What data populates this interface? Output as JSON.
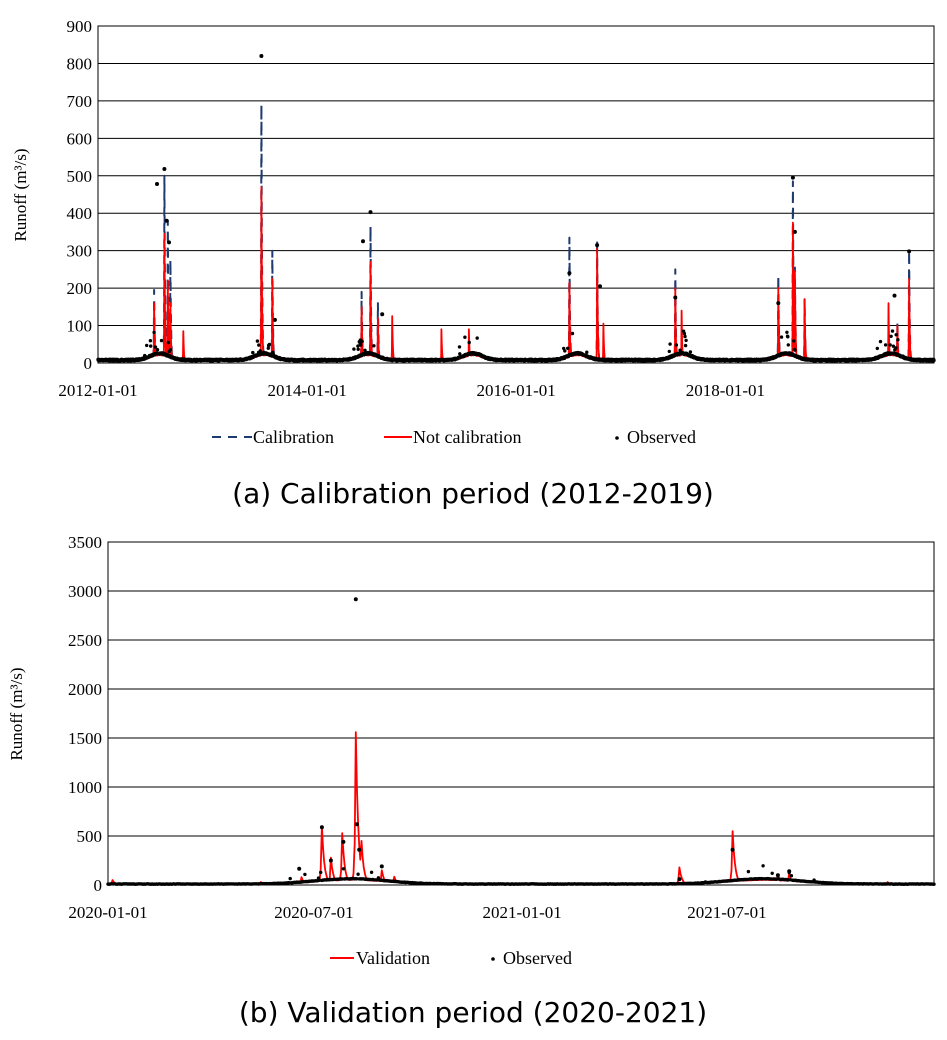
{
  "chart_data": [
    {
      "type": "line",
      "caption": "(a) Calibration period (2012-2019)",
      "ylabel": "Runoff (m³/s)",
      "ylim": [
        0,
        900
      ],
      "yticks": [
        0,
        100,
        200,
        300,
        400,
        500,
        600,
        700,
        800,
        900
      ],
      "xlim": [
        "2012-01-01",
        "2019-12-31"
      ],
      "xticks": [
        "2012-01-01",
        "2014-01-01",
        "2016-01-01",
        "2018-01-01"
      ],
      "grid": "horizontal",
      "legend_position": "bottom",
      "colors": {
        "calibration": "#1f3a6e",
        "not_calibration": "#ff0000",
        "observed": "#000000"
      },
      "series": [
        {
          "name": "Calibration",
          "style": "dashed",
          "peaks": [
            [
              "2012-07-15",
              195
            ],
            [
              "2012-08-20",
              500
            ],
            [
              "2012-09-01",
              380
            ],
            [
              "2012-09-10",
              275
            ],
            [
              "2013-07-25",
              690
            ],
            [
              "2013-09-01",
              300
            ],
            [
              "2014-07-10",
              190
            ],
            [
              "2014-08-10",
              365
            ],
            [
              "2014-09-05",
              160
            ],
            [
              "2016-07-05",
              335
            ],
            [
              "2016-10-10",
              330
            ],
            [
              "2017-07-10",
              250
            ],
            [
              "2018-07-05",
              235
            ],
            [
              "2018-08-25",
              485
            ],
            [
              "2018-09-01",
              255
            ],
            [
              "2018-10-05",
              170
            ],
            [
              "2019-08-25",
              110
            ],
            [
              "2019-10-05",
              300
            ]
          ]
        },
        {
          "name": "Not calibration",
          "style": "solid",
          "peaks": [
            [
              "2012-07-15",
              160
            ],
            [
              "2012-08-20",
              345
            ],
            [
              "2012-09-01",
              220
            ],
            [
              "2012-09-10",
              160
            ],
            [
              "2012-10-25",
              85
            ],
            [
              "2013-07-25",
              470
            ],
            [
              "2013-09-01",
              225
            ],
            [
              "2014-07-10",
              150
            ],
            [
              "2014-08-10",
              270
            ],
            [
              "2014-09-05",
              120
            ],
            [
              "2014-10-25",
              125
            ],
            [
              "2015-04-15",
              90
            ],
            [
              "2015-07-20",
              90
            ],
            [
              "2016-07-05",
              215
            ],
            [
              "2016-10-10",
              305
            ],
            [
              "2016-11-01",
              105
            ],
            [
              "2017-07-10",
              200
            ],
            [
              "2017-08-01",
              140
            ],
            [
              "2018-07-05",
              200
            ],
            [
              "2018-08-25",
              375
            ],
            [
              "2018-09-01",
              245
            ],
            [
              "2018-10-05",
              170
            ],
            [
              "2019-07-25",
              160
            ],
            [
              "2019-08-25",
              100
            ],
            [
              "2019-10-05",
              225
            ]
          ]
        },
        {
          "name": "Observed",
          "style": "dots",
          "peaks": [
            [
              "2012-07-25",
              478
            ],
            [
              "2012-08-20",
              518
            ],
            [
              "2012-08-28",
              380
            ],
            [
              "2012-09-05",
              322
            ],
            [
              "2013-07-25",
              820
            ],
            [
              "2013-09-10",
              115
            ],
            [
              "2014-07-15",
              325
            ],
            [
              "2014-08-10",
              403
            ],
            [
              "2014-09-20",
              130
            ],
            [
              "2016-07-05",
              240
            ],
            [
              "2016-10-10",
              315
            ],
            [
              "2016-10-20",
              205
            ],
            [
              "2017-07-10",
              175
            ],
            [
              "2018-07-05",
              160
            ],
            [
              "2018-08-25",
              495
            ],
            [
              "2018-09-01",
              350
            ],
            [
              "2019-08-15",
              180
            ],
            [
              "2019-10-05",
              298
            ]
          ]
        }
      ]
    },
    {
      "type": "line",
      "caption": "(b) Validation period (2020-2021)",
      "ylabel": "Runoff (m³/s)",
      "ylim": [
        0,
        3500
      ],
      "yticks": [
        0,
        500,
        1000,
        1500,
        2000,
        2500,
        3000,
        3500
      ],
      "xlim": [
        "2020-01-01",
        "2021-12-31"
      ],
      "xticks": [
        "2020-01-01",
        "2020-07-01",
        "2021-01-01",
        "2021-07-01"
      ],
      "grid": "horizontal",
      "legend_position": "bottom",
      "colors": {
        "validation": "#ff0000",
        "observed": "#000000"
      },
      "series": [
        {
          "name": "Validation",
          "style": "solid",
          "peaks": [
            [
              "2020-01-05",
              50
            ],
            [
              "2020-05-15",
              30
            ],
            [
              "2020-06-20",
              80
            ],
            [
              "2020-07-08",
              600
            ],
            [
              "2020-07-16",
              280
            ],
            [
              "2020-07-26",
              530
            ],
            [
              "2020-08-07",
              1560
            ],
            [
              "2020-08-12",
              450
            ],
            [
              "2020-08-30",
              150
            ],
            [
              "2020-09-10",
              85
            ],
            [
              "2021-05-20",
              180
            ],
            [
              "2021-07-06",
              550
            ],
            [
              "2021-08-15",
              110
            ],
            [
              "2021-08-25",
              120
            ],
            [
              "2021-11-20",
              30
            ]
          ]
        },
        {
          "name": "Observed",
          "style": "dots",
          "peaks": [
            [
              "2020-06-18",
              165
            ],
            [
              "2020-07-08",
              590
            ],
            [
              "2020-07-16",
              250
            ],
            [
              "2020-07-27",
              440
            ],
            [
              "2020-08-07",
              2915
            ],
            [
              "2020-08-08",
              620
            ],
            [
              "2020-08-10",
              360
            ],
            [
              "2020-08-30",
              190
            ],
            [
              "2021-05-20",
              60
            ],
            [
              "2021-07-06",
              360
            ],
            [
              "2021-08-15",
              100
            ],
            [
              "2021-08-25",
              140
            ]
          ]
        }
      ]
    }
  ]
}
